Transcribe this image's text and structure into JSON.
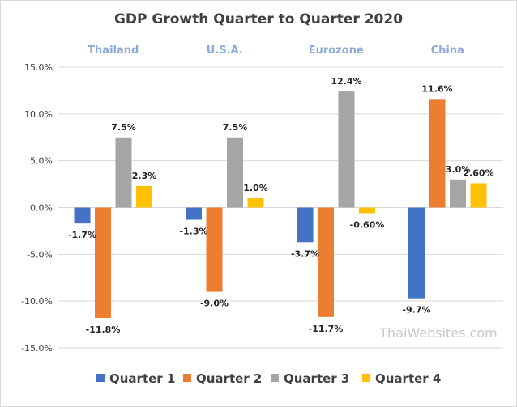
{
  "chart_data": {
    "type": "bar",
    "title": "GDP Growth Quarter to Quarter 2020",
    "categories": [
      "Thailand",
      "U.S.A.",
      "Eurozone",
      "China"
    ],
    "series": [
      {
        "name": "Quarter 1",
        "color": "#4472c4",
        "values": [
          -1.7,
          -1.3,
          -3.7,
          -9.7
        ],
        "labels": [
          "-1.7%",
          "-1.3%",
          "-3.7%",
          "-9.7%"
        ]
      },
      {
        "name": "Quarter 2",
        "color": "#ed7d31",
        "values": [
          -11.8,
          -9.0,
          -11.7,
          11.6
        ],
        "labels": [
          "-11.8%",
          "-9.0%",
          "-11.7%",
          "11.6%"
        ]
      },
      {
        "name": "Quarter 3",
        "color": "#a5a5a5",
        "values": [
          7.5,
          7.5,
          12.4,
          3.0
        ],
        "labels": [
          "7.5%",
          "7.5%",
          "12.4%",
          "3.0%"
        ]
      },
      {
        "name": "Quarter 4",
        "color": "#ffc000",
        "values": [
          2.3,
          1.0,
          -0.6,
          2.6
        ],
        "labels": [
          "2.3%",
          "1.0%",
          "-0.60%",
          "2.60%"
        ]
      }
    ],
    "yticks": [
      15,
      10,
      5,
      0,
      -5,
      -10,
      -15
    ],
    "ytick_labels": [
      "15.0%",
      "10.0%",
      "5.0%",
      "0.0%",
      "-5.0%",
      "-10.0%",
      "-15.0%"
    ],
    "ylim": [
      -15,
      15
    ],
    "grid": true,
    "legend_position": "bottom",
    "xlabel": "",
    "ylabel": ""
  },
  "watermark": "ThaiWebsites.com"
}
